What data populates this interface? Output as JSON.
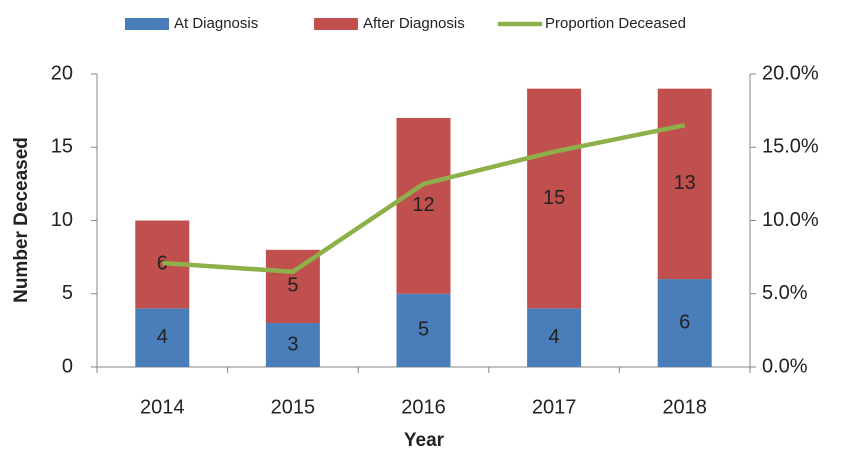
{
  "chart_data": {
    "type": "bar",
    "categories": [
      "2014",
      "2015",
      "2016",
      "2017",
      "2018"
    ],
    "series": [
      {
        "name": "At Diagnosis",
        "color": "#4a7ebb",
        "values": [
          4,
          3,
          5,
          4,
          6
        ]
      },
      {
        "name": "After Diagnosis",
        "color": "#c0504d",
        "values": [
          6,
          5,
          12,
          15,
          13
        ]
      },
      {
        "name": "Proportion Deceased",
        "color": "#8db04a",
        "type": "line",
        "axis": "y2",
        "values": [
          7.1,
          6.5,
          12.5,
          14.7,
          16.5
        ]
      }
    ],
    "stacked": true,
    "x_label": "Year",
    "y_label": "Number Deceased",
    "ylim": [
      0,
      20
    ],
    "yticks": [
      0,
      5,
      10,
      15,
      20
    ],
    "y2lim": [
      0,
      20
    ],
    "y2ticks": [
      {
        "value": 0,
        "label": "0.0%"
      },
      {
        "value": 5,
        "label": "5.0%"
      },
      {
        "value": 10,
        "label": "10.0%"
      },
      {
        "value": 15,
        "label": "15.0%"
      },
      {
        "value": 20,
        "label": "20.0%"
      }
    ],
    "grid": false,
    "legend": "top"
  }
}
